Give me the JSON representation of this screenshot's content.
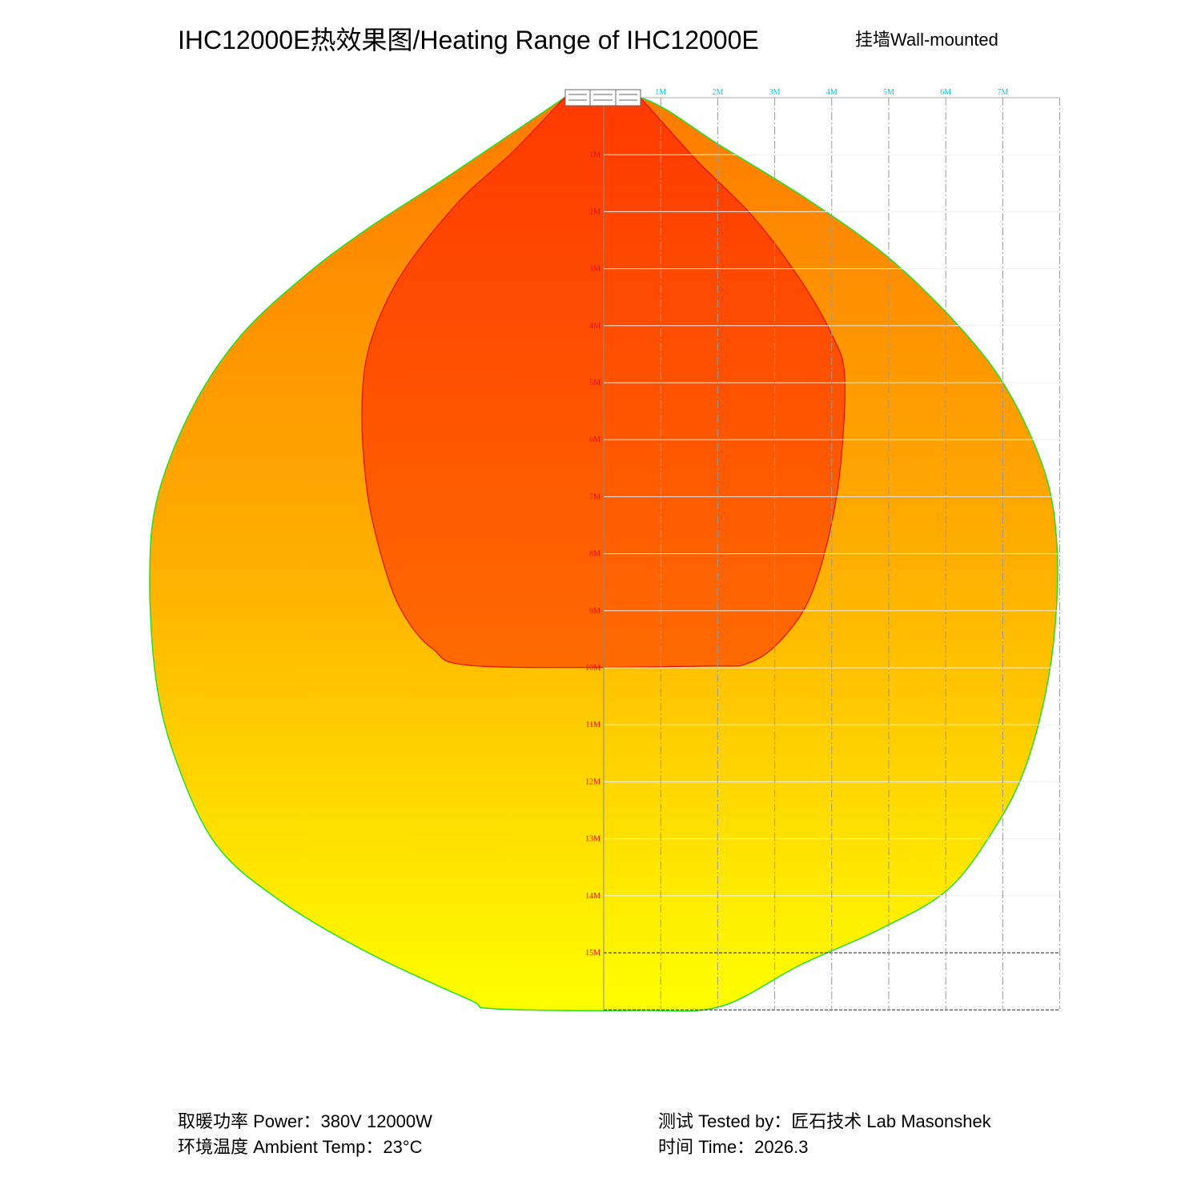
{
  "header": {
    "title": "IHC12000E热效果图/Heating Range of IHC12000E",
    "mount": "挂墙Wall-mounted"
  },
  "axes": {
    "horizontal": [
      "1M",
      "2M",
      "3M",
      "4M",
      "5M",
      "6M",
      "7M"
    ],
    "vertical": [
      "1M",
      "2M",
      "3M",
      "4M",
      "5M",
      "6M",
      "7M",
      "8M",
      "9M",
      "10M",
      "11M",
      "12M",
      "13M",
      "14M",
      "15M"
    ]
  },
  "footer": {
    "power": "取暖功率  Power：380V  12000W",
    "temp": "环境温度  Ambient Temp：23°C",
    "tested": "测试  Tested by：匠石技术  Lab Masonshek",
    "time": "时间  Time：2026.3"
  }
}
